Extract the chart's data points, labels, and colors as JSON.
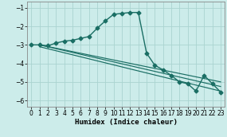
{
  "xlabel": "Humidex (Indice chaleur)",
  "bg_color": "#ccecea",
  "grid_color": "#aad4d0",
  "line_color": "#1a6e64",
  "xlim": [
    -0.5,
    23.5
  ],
  "ylim": [
    -6.35,
    -0.65
  ],
  "yticks": [
    -6,
    -5,
    -4,
    -3,
    -2,
    -1
  ],
  "xticks": [
    0,
    1,
    2,
    3,
    4,
    5,
    6,
    7,
    8,
    9,
    10,
    11,
    12,
    13,
    14,
    15,
    16,
    17,
    18,
    19,
    20,
    21,
    22,
    23
  ],
  "main_x": [
    0,
    1,
    2,
    3,
    4,
    5,
    6,
    7,
    8,
    9,
    10,
    11,
    12,
    13,
    14,
    15,
    16,
    17,
    18,
    19,
    20,
    21,
    22,
    23
  ],
  "main_y": [
    -3.0,
    -3.0,
    -3.05,
    -2.9,
    -2.8,
    -2.75,
    -2.65,
    -2.55,
    -2.1,
    -1.7,
    -1.35,
    -1.3,
    -1.25,
    -1.25,
    -3.45,
    -4.1,
    -4.35,
    -4.65,
    -5.0,
    -5.1,
    -5.5,
    -4.65,
    -5.1,
    -5.55
  ],
  "line1_x": [
    1,
    23
  ],
  "line1_y": [
    -3.0,
    -5.0
  ],
  "line2_x": [
    1,
    23
  ],
  "line2_y": [
    -3.0,
    -5.25
  ],
  "line3_x": [
    1,
    23
  ],
  "line3_y": [
    -3.1,
    -5.5
  ]
}
